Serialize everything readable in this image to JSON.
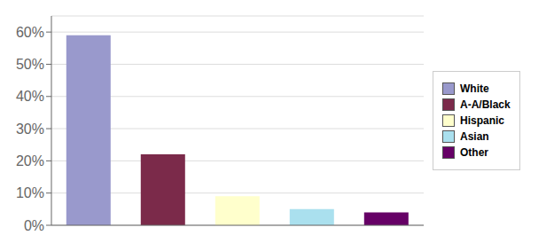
{
  "chart_data": {
    "type": "bar",
    "categories": [
      "White",
      "A-A/Black",
      "Hispanic",
      "Asian",
      "Other"
    ],
    "values": [
      0.59,
      0.22,
      0.09,
      0.05,
      0.04
    ],
    "colors": [
      "#9999cc",
      "#7b2a4a",
      "#ffffcc",
      "#aae0ee",
      "#660066"
    ],
    "ylim": [
      0,
      0.65
    ],
    "yticks": [
      {
        "value": 0.0,
        "label": "0%"
      },
      {
        "value": 0.1,
        "label": "10%"
      },
      {
        "value": 0.2,
        "label": "20%"
      },
      {
        "value": 0.3,
        "label": "30%"
      },
      {
        "value": 0.4,
        "label": "40%"
      },
      {
        "value": 0.5,
        "label": "50%"
      },
      {
        "value": 0.6,
        "label": "60%"
      }
    ],
    "grid": true,
    "legend": "right",
    "tick_labels": "y"
  }
}
